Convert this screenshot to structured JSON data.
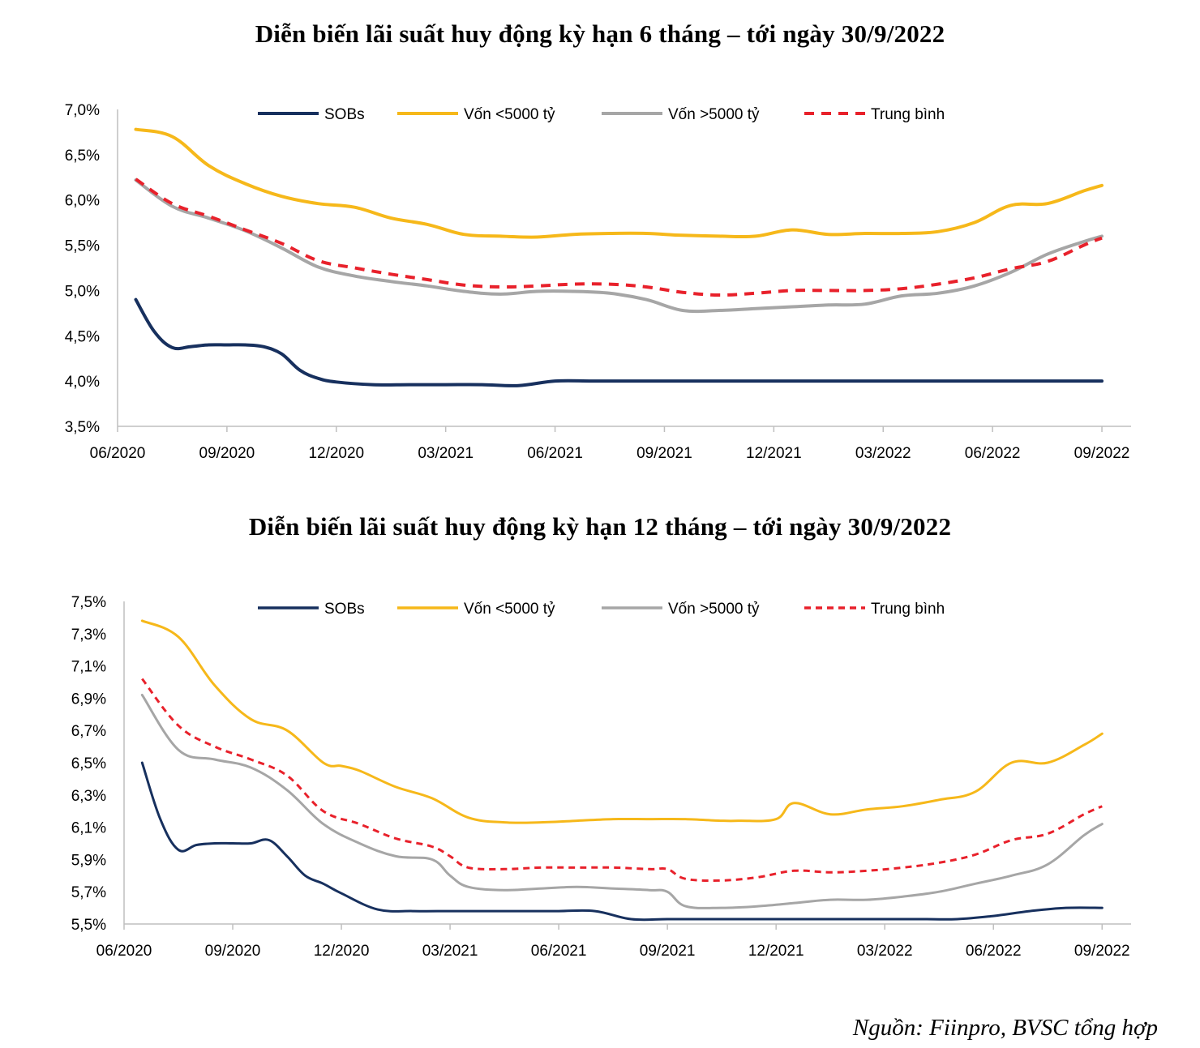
{
  "chart_data": [
    {
      "type": "line",
      "title": "Diễn biến lãi suất huy động kỳ hạn 6 tháng – tới ngày 30/9/2022",
      "xlabel": "",
      "ylabel": "",
      "ylim": [
        3.5,
        7.0
      ],
      "y_ticks": [
        "3,5%",
        "4,0%",
        "4,5%",
        "5,0%",
        "5,5%",
        "6,0%",
        "6,5%",
        "7,0%"
      ],
      "y_tick_values": [
        3.5,
        4.0,
        4.5,
        5.0,
        5.5,
        6.0,
        6.5,
        7.0
      ],
      "x_tick_labels": [
        "06/2020",
        "09/2020",
        "12/2020",
        "03/2021",
        "06/2021",
        "09/2021",
        "12/2021",
        "03/2022",
        "06/2022",
        "09/2022"
      ],
      "x_range_months": [
        0,
        27.8
      ],
      "legend_position": "top",
      "series": [
        {
          "name": "SOBs",
          "color": "#17305e",
          "dash": "solid",
          "x": [
            0.5,
            1.0,
            1.5,
            2.0,
            2.5,
            3.0,
            3.5,
            4.0,
            4.5,
            5.0,
            5.5,
            6.0,
            7.0,
            8.0,
            9.0,
            10.0,
            11.0,
            12.0,
            13.0,
            14.0,
            15.0,
            16.0,
            17.0,
            18.0,
            19.0,
            20.0,
            21.0,
            22.0,
            23.0,
            24.0,
            25.0,
            26.0,
            27.0
          ],
          "y": [
            4.9,
            4.55,
            4.37,
            4.38,
            4.4,
            4.4,
            4.4,
            4.38,
            4.3,
            4.12,
            4.03,
            3.99,
            3.96,
            3.96,
            3.96,
            3.96,
            3.95,
            4.0,
            4.0,
            4.0,
            4.0,
            4.0,
            4.0,
            4.0,
            4.0,
            4.0,
            4.0,
            4.0,
            4.0,
            4.0,
            4.0,
            4.0,
            4.0
          ]
        },
        {
          "name": "Vốn <5000 tỷ",
          "color": "#f6b81a",
          "dash": "solid",
          "x": [
            0.5,
            1.5,
            2.5,
            3.5,
            4.5,
            5.5,
            6.5,
            7.5,
            8.5,
            9.5,
            10.5,
            11.5,
            12.5,
            13.5,
            14.5,
            15.5,
            16.5,
            17.5,
            18.5,
            19.5,
            20.5,
            21.5,
            22.5,
            23.5,
            24.5,
            25.5,
            26.5,
            27.0
          ],
          "y": [
            6.78,
            6.7,
            6.38,
            6.18,
            6.04,
            5.96,
            5.92,
            5.8,
            5.73,
            5.62,
            5.6,
            5.59,
            5.62,
            5.63,
            5.63,
            5.61,
            5.6,
            5.6,
            5.67,
            5.62,
            5.63,
            5.63,
            5.65,
            5.75,
            5.94,
            5.96,
            6.1,
            6.16
          ]
        },
        {
          "name": "Vốn >5000 tỷ",
          "color": "#a6a6a6",
          "dash": "solid",
          "x": [
            0.5,
            1.5,
            2.5,
            3.5,
            4.5,
            5.5,
            6.5,
            7.5,
            8.5,
            9.5,
            10.5,
            11.5,
            12.5,
            13.5,
            14.5,
            15.5,
            16.5,
            17.5,
            18.5,
            19.5,
            20.5,
            21.5,
            22.5,
            23.5,
            24.5,
            25.5,
            26.5,
            27.0
          ],
          "y": [
            6.22,
            5.93,
            5.8,
            5.66,
            5.47,
            5.26,
            5.16,
            5.1,
            5.05,
            4.99,
            4.96,
            4.99,
            4.99,
            4.97,
            4.9,
            4.78,
            4.78,
            4.8,
            4.82,
            4.84,
            4.85,
            4.94,
            4.97,
            5.05,
            5.2,
            5.4,
            5.54,
            5.6
          ]
        },
        {
          "name": "Trung bình",
          "color": "#e8212b",
          "dash": "dashed",
          "x": [
            0.5,
            1.5,
            2.5,
            3.5,
            4.5,
            5.5,
            6.5,
            7.5,
            8.5,
            9.5,
            10.5,
            11.5,
            12.5,
            13.5,
            14.5,
            15.5,
            16.5,
            17.5,
            18.5,
            19.5,
            20.5,
            21.5,
            22.5,
            23.5,
            24.5,
            25.5,
            26.5,
            27.0
          ],
          "y": [
            6.23,
            5.96,
            5.82,
            5.67,
            5.52,
            5.33,
            5.25,
            5.18,
            5.12,
            5.06,
            5.04,
            5.05,
            5.07,
            5.07,
            5.04,
            4.98,
            4.95,
            4.97,
            5.0,
            5.0,
            5.0,
            5.02,
            5.07,
            5.14,
            5.24,
            5.32,
            5.5,
            5.58
          ]
        }
      ]
    },
    {
      "type": "line",
      "title": "Diễn biến lãi suất huy động kỳ hạn 12 tháng – tới ngày 30/9/2022",
      "xlabel": "",
      "ylabel": "",
      "ylim": [
        5.5,
        7.5
      ],
      "y_ticks": [
        "5,5%",
        "5,7%",
        "5,9%",
        "6,1%",
        "6,3%",
        "6,5%",
        "6,7%",
        "6,9%",
        "7,1%",
        "7,3%",
        "7,5%"
      ],
      "y_tick_values": [
        5.5,
        5.7,
        5.9,
        6.1,
        6.3,
        6.5,
        6.7,
        6.9,
        7.1,
        7.3,
        7.5
      ],
      "x_tick_labels": [
        "06/2020",
        "09/2020",
        "12/2020",
        "03/2021",
        "06/2021",
        "09/2021",
        "12/2021",
        "03/2022",
        "06/2022",
        "09/2022"
      ],
      "x_range_months": [
        0,
        27.8
      ],
      "legend_position": "top",
      "series": [
        {
          "name": "SOBs",
          "color": "#17305e",
          "dash": "solid",
          "x": [
            0.5,
            1.0,
            1.5,
            2.0,
            2.5,
            3.0,
            3.5,
            4.0,
            4.5,
            5.0,
            5.5,
            6.0,
            7.0,
            8.0,
            9.0,
            10.0,
            11.0,
            12.0,
            13.0,
            14.0,
            15.0,
            16.0,
            17.0,
            18.0,
            19.0,
            20.0,
            21.0,
            22.0,
            23.0,
            24.0,
            25.0,
            26.0,
            27.0
          ],
          "y": [
            6.5,
            6.15,
            5.96,
            5.99,
            6.0,
            6.0,
            6.0,
            6.02,
            5.92,
            5.8,
            5.75,
            5.69,
            5.59,
            5.58,
            5.58,
            5.58,
            5.58,
            5.58,
            5.58,
            5.53,
            5.53,
            5.53,
            5.53,
            5.53,
            5.53,
            5.53,
            5.53,
            5.53,
            5.53,
            5.55,
            5.58,
            5.6,
            5.6
          ]
        },
        {
          "name": "Vốn <5000 tỷ",
          "color": "#f6b81a",
          "dash": "solid",
          "x": [
            0.5,
            1.5,
            2.5,
            3.5,
            4.5,
            5.5,
            6.0,
            6.5,
            7.5,
            8.5,
            9.5,
            10.5,
            11.5,
            12.5,
            13.5,
            14.5,
            15.5,
            16.5,
            17.0,
            18.0,
            18.5,
            19.5,
            20.5,
            21.5,
            22.5,
            23.5,
            24.5,
            25.5,
            26.5,
            27.0
          ],
          "y": [
            7.38,
            7.28,
            6.98,
            6.77,
            6.7,
            6.5,
            6.48,
            6.45,
            6.35,
            6.28,
            6.16,
            6.13,
            6.13,
            6.14,
            6.15,
            6.15,
            6.15,
            6.14,
            6.14,
            6.15,
            6.25,
            6.18,
            6.21,
            6.23,
            6.27,
            6.32,
            6.5,
            6.5,
            6.61,
            6.68
          ]
        },
        {
          "name": "Vốn >5000 tỷ",
          "color": "#a6a6a6",
          "dash": "solid",
          "x": [
            0.5,
            1.5,
            2.5,
            3.5,
            4.5,
            5.5,
            6.5,
            7.5,
            8.5,
            9.0,
            9.5,
            10.5,
            11.5,
            12.5,
            13.5,
            14.5,
            15.0,
            15.5,
            16.5,
            17.5,
            18.5,
            19.5,
            20.5,
            21.5,
            22.5,
            23.5,
            24.5,
            25.5,
            26.5,
            27.0
          ],
          "y": [
            6.92,
            6.58,
            6.52,
            6.47,
            6.33,
            6.12,
            6.0,
            5.92,
            5.9,
            5.8,
            5.73,
            5.71,
            5.72,
            5.73,
            5.72,
            5.71,
            5.7,
            5.61,
            5.6,
            5.61,
            5.63,
            5.65,
            5.65,
            5.67,
            5.7,
            5.75,
            5.8,
            5.87,
            6.05,
            6.12
          ]
        },
        {
          "name": "Trung bình",
          "color": "#e8212b",
          "dash": "dashed",
          "x": [
            0.5,
            1.5,
            2.5,
            3.5,
            4.5,
            5.5,
            6.5,
            7.5,
            8.5,
            9.0,
            9.5,
            10.5,
            11.5,
            12.5,
            13.5,
            14.5,
            15.0,
            15.5,
            16.5,
            17.5,
            18.5,
            19.5,
            20.5,
            21.5,
            22.5,
            23.5,
            24.5,
            25.5,
            26.5,
            27.0
          ],
          "y": [
            7.02,
            6.73,
            6.6,
            6.52,
            6.42,
            6.2,
            6.12,
            6.03,
            5.98,
            5.92,
            5.85,
            5.84,
            5.85,
            5.85,
            5.85,
            5.84,
            5.84,
            5.78,
            5.77,
            5.79,
            5.83,
            5.82,
            5.83,
            5.85,
            5.88,
            5.93,
            6.02,
            6.06,
            6.18,
            6.23
          ]
        }
      ]
    }
  ],
  "source_note": "Nguồn: Fiinpro, BVSC tổng hợp"
}
